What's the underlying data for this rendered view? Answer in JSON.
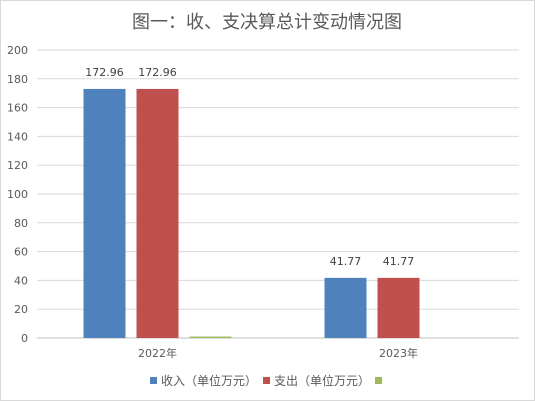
{
  "chart_data": {
    "type": "bar",
    "title": "图一：收、支决算总计变动情况图",
    "categories": [
      "2022年",
      "2023年"
    ],
    "series": [
      {
        "name": "收入（单位万元）",
        "values": [
          172.96,
          41.77
        ],
        "color": "#4f81bd",
        "labels": [
          "172.96",
          "41.77"
        ]
      },
      {
        "name": "支出（单位万元）",
        "values": [
          172.96,
          41.77
        ],
        "color": "#c0504d",
        "labels": [
          "172.96",
          "41.77"
        ]
      },
      {
        "name": "",
        "values": [
          1,
          0
        ],
        "color": "#9bbb59",
        "labels": [
          "",
          ""
        ]
      }
    ],
    "ylim": [
      0,
      200
    ],
    "yticks": [
      "0",
      "20",
      "40",
      "60",
      "80",
      "100",
      "120",
      "140",
      "160",
      "180",
      "200"
    ],
    "xlabel": "",
    "ylabel": "",
    "grid": true,
    "legend_position": "bottom"
  }
}
